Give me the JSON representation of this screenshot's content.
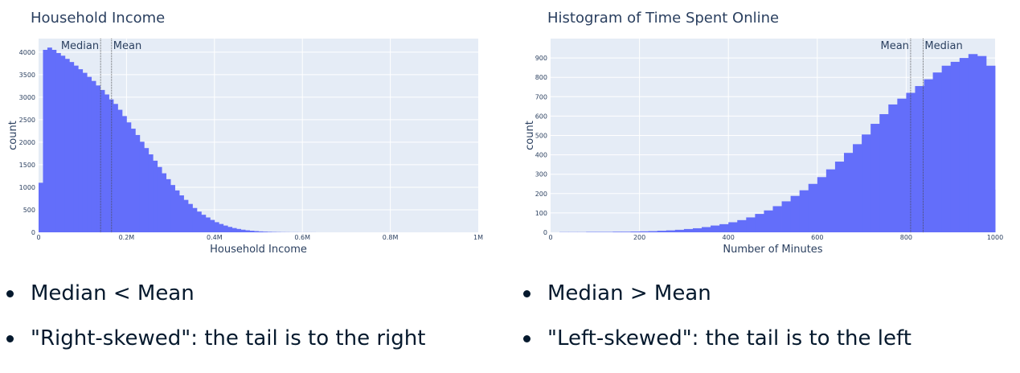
{
  "colors": {
    "bar": "#636efa",
    "plot_bg": "#e5ecf6",
    "grid": "#ffffff",
    "text": "#2a3f5f",
    "bullet_text": "#05192d"
  },
  "chart_data": [
    {
      "type": "bar",
      "title": "Household Income",
      "xlabel": "Household Income",
      "ylabel": "count",
      "xlim": [
        0,
        1000000
      ],
      "ylim": [
        0,
        4300
      ],
      "xticks": [
        {
          "value": 0,
          "label": "0"
        },
        {
          "value": 200000,
          "label": "0.2M"
        },
        {
          "value": 400000,
          "label": "0.4M"
        },
        {
          "value": 600000,
          "label": "0.6M"
        },
        {
          "value": 800000,
          "label": "0.8M"
        },
        {
          "value": 1000000,
          "label": "1M"
        }
      ],
      "yticks": [
        {
          "value": 0,
          "label": "0"
        },
        {
          "value": 500,
          "label": "500"
        },
        {
          "value": 1000,
          "label": "1000"
        },
        {
          "value": 1500,
          "label": "1500"
        },
        {
          "value": 2000,
          "label": "2000"
        },
        {
          "value": 2500,
          "label": "2500"
        },
        {
          "value": 3000,
          "label": "3000"
        },
        {
          "value": 3500,
          "label": "3500"
        },
        {
          "value": 4000,
          "label": "4000"
        }
      ],
      "series": [
        {
          "x": [
            0,
            10000,
            20000,
            30000,
            40000,
            50000,
            60000,
            70000,
            80000,
            90000,
            100000,
            110000,
            120000,
            130000,
            140000,
            150000,
            160000,
            170000,
            180000,
            190000,
            200000,
            210000,
            220000,
            230000,
            240000,
            250000,
            260000,
            270000,
            280000,
            290000,
            300000,
            310000,
            320000,
            330000,
            340000,
            350000,
            360000,
            370000,
            380000,
            390000,
            400000,
            410000,
            420000,
            430000,
            440000,
            450000,
            460000,
            470000,
            480000,
            490000,
            500000,
            510000,
            520000,
            530000,
            540000,
            550000,
            560000,
            570000,
            580000,
            590000,
            600000,
            610000,
            620000,
            630000,
            640000,
            650000,
            660000,
            670000,
            680000,
            690000,
            700000,
            710000,
            720000,
            730000,
            740000,
            750000,
            760000,
            770000,
            780000,
            790000,
            800000
          ],
          "values": [
            1100,
            4050,
            4100,
            4050,
            3980,
            3920,
            3850,
            3780,
            3700,
            3620,
            3540,
            3450,
            3360,
            3260,
            3160,
            3060,
            2950,
            2850,
            2720,
            2580,
            2440,
            2300,
            2160,
            2010,
            1870,
            1730,
            1590,
            1450,
            1310,
            1180,
            1050,
            930,
            820,
            720,
            630,
            540,
            460,
            390,
            330,
            275,
            225,
            185,
            150,
            120,
            95,
            75,
            58,
            45,
            35,
            27,
            20,
            15,
            11,
            8,
            6,
            4,
            3,
            2,
            2,
            1,
            1,
            1,
            1,
            0,
            0,
            0,
            0,
            0,
            0,
            0,
            0,
            0,
            0,
            0,
            0,
            0,
            0,
            0,
            0,
            0,
            0
          ]
        }
      ],
      "vlines": [
        {
          "name": "Median",
          "value": 141000
        },
        {
          "name": "Mean",
          "value": 166000
        }
      ]
    },
    {
      "type": "bar",
      "title": "Histogram of Time Spent Online",
      "xlabel": "Number of Minutes",
      "ylabel": "count",
      "xlim": [
        0,
        1000
      ],
      "ylim": [
        0,
        1000
      ],
      "xticks": [
        {
          "value": 0,
          "label": "0"
        },
        {
          "value": 200,
          "label": "200"
        },
        {
          "value": 400,
          "label": "400"
        },
        {
          "value": 600,
          "label": "600"
        },
        {
          "value": 800,
          "label": "800"
        },
        {
          "value": 1000,
          "label": "1000"
        }
      ],
      "yticks": [
        {
          "value": 0,
          "label": "0"
        },
        {
          "value": 100,
          "label": "100"
        },
        {
          "value": 200,
          "label": "200"
        },
        {
          "value": 300,
          "label": "300"
        },
        {
          "value": 400,
          "label": "400"
        },
        {
          "value": 500,
          "label": "500"
        },
        {
          "value": 600,
          "label": "600"
        },
        {
          "value": 700,
          "label": "700"
        },
        {
          "value": 800,
          "label": "800"
        },
        {
          "value": 900,
          "label": "900"
        }
      ],
      "series": [
        {
          "x": [
            0,
            20,
            40,
            60,
            80,
            100,
            120,
            140,
            160,
            180,
            200,
            220,
            240,
            260,
            280,
            300,
            320,
            340,
            360,
            380,
            400,
            420,
            440,
            460,
            480,
            500,
            520,
            540,
            560,
            580,
            600,
            620,
            640,
            660,
            680,
            700,
            720,
            740,
            760,
            780,
            800,
            820,
            840,
            860,
            880,
            900,
            920,
            940,
            960,
            980,
            1000
          ],
          "values": [
            0,
            1,
            1,
            1,
            2,
            2,
            2,
            3,
            3,
            4,
            5,
            6,
            8,
            10,
            13,
            17,
            21,
            27,
            35,
            42,
            52,
            63,
            77,
            95,
            113,
            135,
            160,
            188,
            217,
            250,
            285,
            325,
            365,
            410,
            455,
            505,
            560,
            610,
            660,
            690,
            720,
            755,
            790,
            825,
            860,
            880,
            900,
            920,
            910,
            860,
            220
          ]
        }
      ],
      "vlines": [
        {
          "name": "Mean",
          "value": 810
        },
        {
          "name": "Median",
          "value": 838
        }
      ]
    }
  ],
  "bullets": {
    "left": [
      "Median < Mean",
      "\"Right-skewed\": the tail is to the right"
    ],
    "right": [
      "Median > Mean",
      "\"Left-skewed\": the tail is to the left"
    ]
  }
}
